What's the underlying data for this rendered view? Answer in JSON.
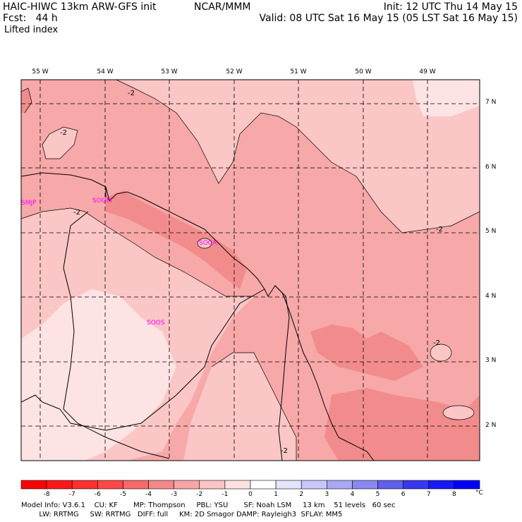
{
  "header": {
    "model": "HAIC-HIWC 13km ARW-GFS init",
    "org": "NCAR/MMM",
    "fcst": "Fcst:   44 h",
    "field": "Lifted index",
    "init": "Init: 12 UTC Thu 14 May 15",
    "valid": "Valid: 08 UTC Sat 16 May 15 (05 LST Sat 16 May 15)"
  },
  "map": {
    "lon_labels": [
      "55 W",
      "54 W",
      "53 W",
      "52 W",
      "51 W",
      "50 W",
      "49 W"
    ],
    "lat_labels": [
      "7 N",
      "6 N",
      "5 N",
      "4 N",
      "3 N",
      "2 N"
    ],
    "stations": [
      "SMJP",
      "SOGM",
      "SOCA",
      "SOOS"
    ],
    "contour_label": "-2",
    "colors": {
      "coast": "#000000",
      "station": "#ff00ff",
      "lev_m4": "#f28c8c",
      "lev_m3": "#f7a8a8",
      "lev_m2": "#fbc6c6",
      "lev_m1": "#fde3e3"
    }
  },
  "colorbar": {
    "ticks": [
      "-8",
      "-7",
      "-6",
      "-5",
      "-4",
      "-3",
      "-2",
      "-1",
      "0",
      "1",
      "2",
      "3",
      "4",
      "5",
      "6",
      "7",
      "8"
    ],
    "unit": "°C",
    "colors": [
      "#ff0000",
      "#ff1818",
      "#ff3030",
      "#ff4848",
      "#f86a6a",
      "#f48888",
      "#f7a5a5",
      "#fbc4c4",
      "#fde2e2",
      "#ffffff",
      "#e4e4fb",
      "#c8c8f8",
      "#a8a8f5",
      "#8888f0",
      "#6060ec",
      "#3838f0",
      "#1818f8",
      "#0000ff"
    ]
  },
  "footer": {
    "line1": "Model Info: V3.6.1    CU: KF       MP: Thompson     PBL: YSU       SF: Noah LSM     13 km    51 levels   60 sec",
    "line2": "        LW: RRTMG     SW: RRTMG   DIFF: full     KM: 2D Smagor DAMP: Rayleigh3  SFLAY: MM5"
  }
}
